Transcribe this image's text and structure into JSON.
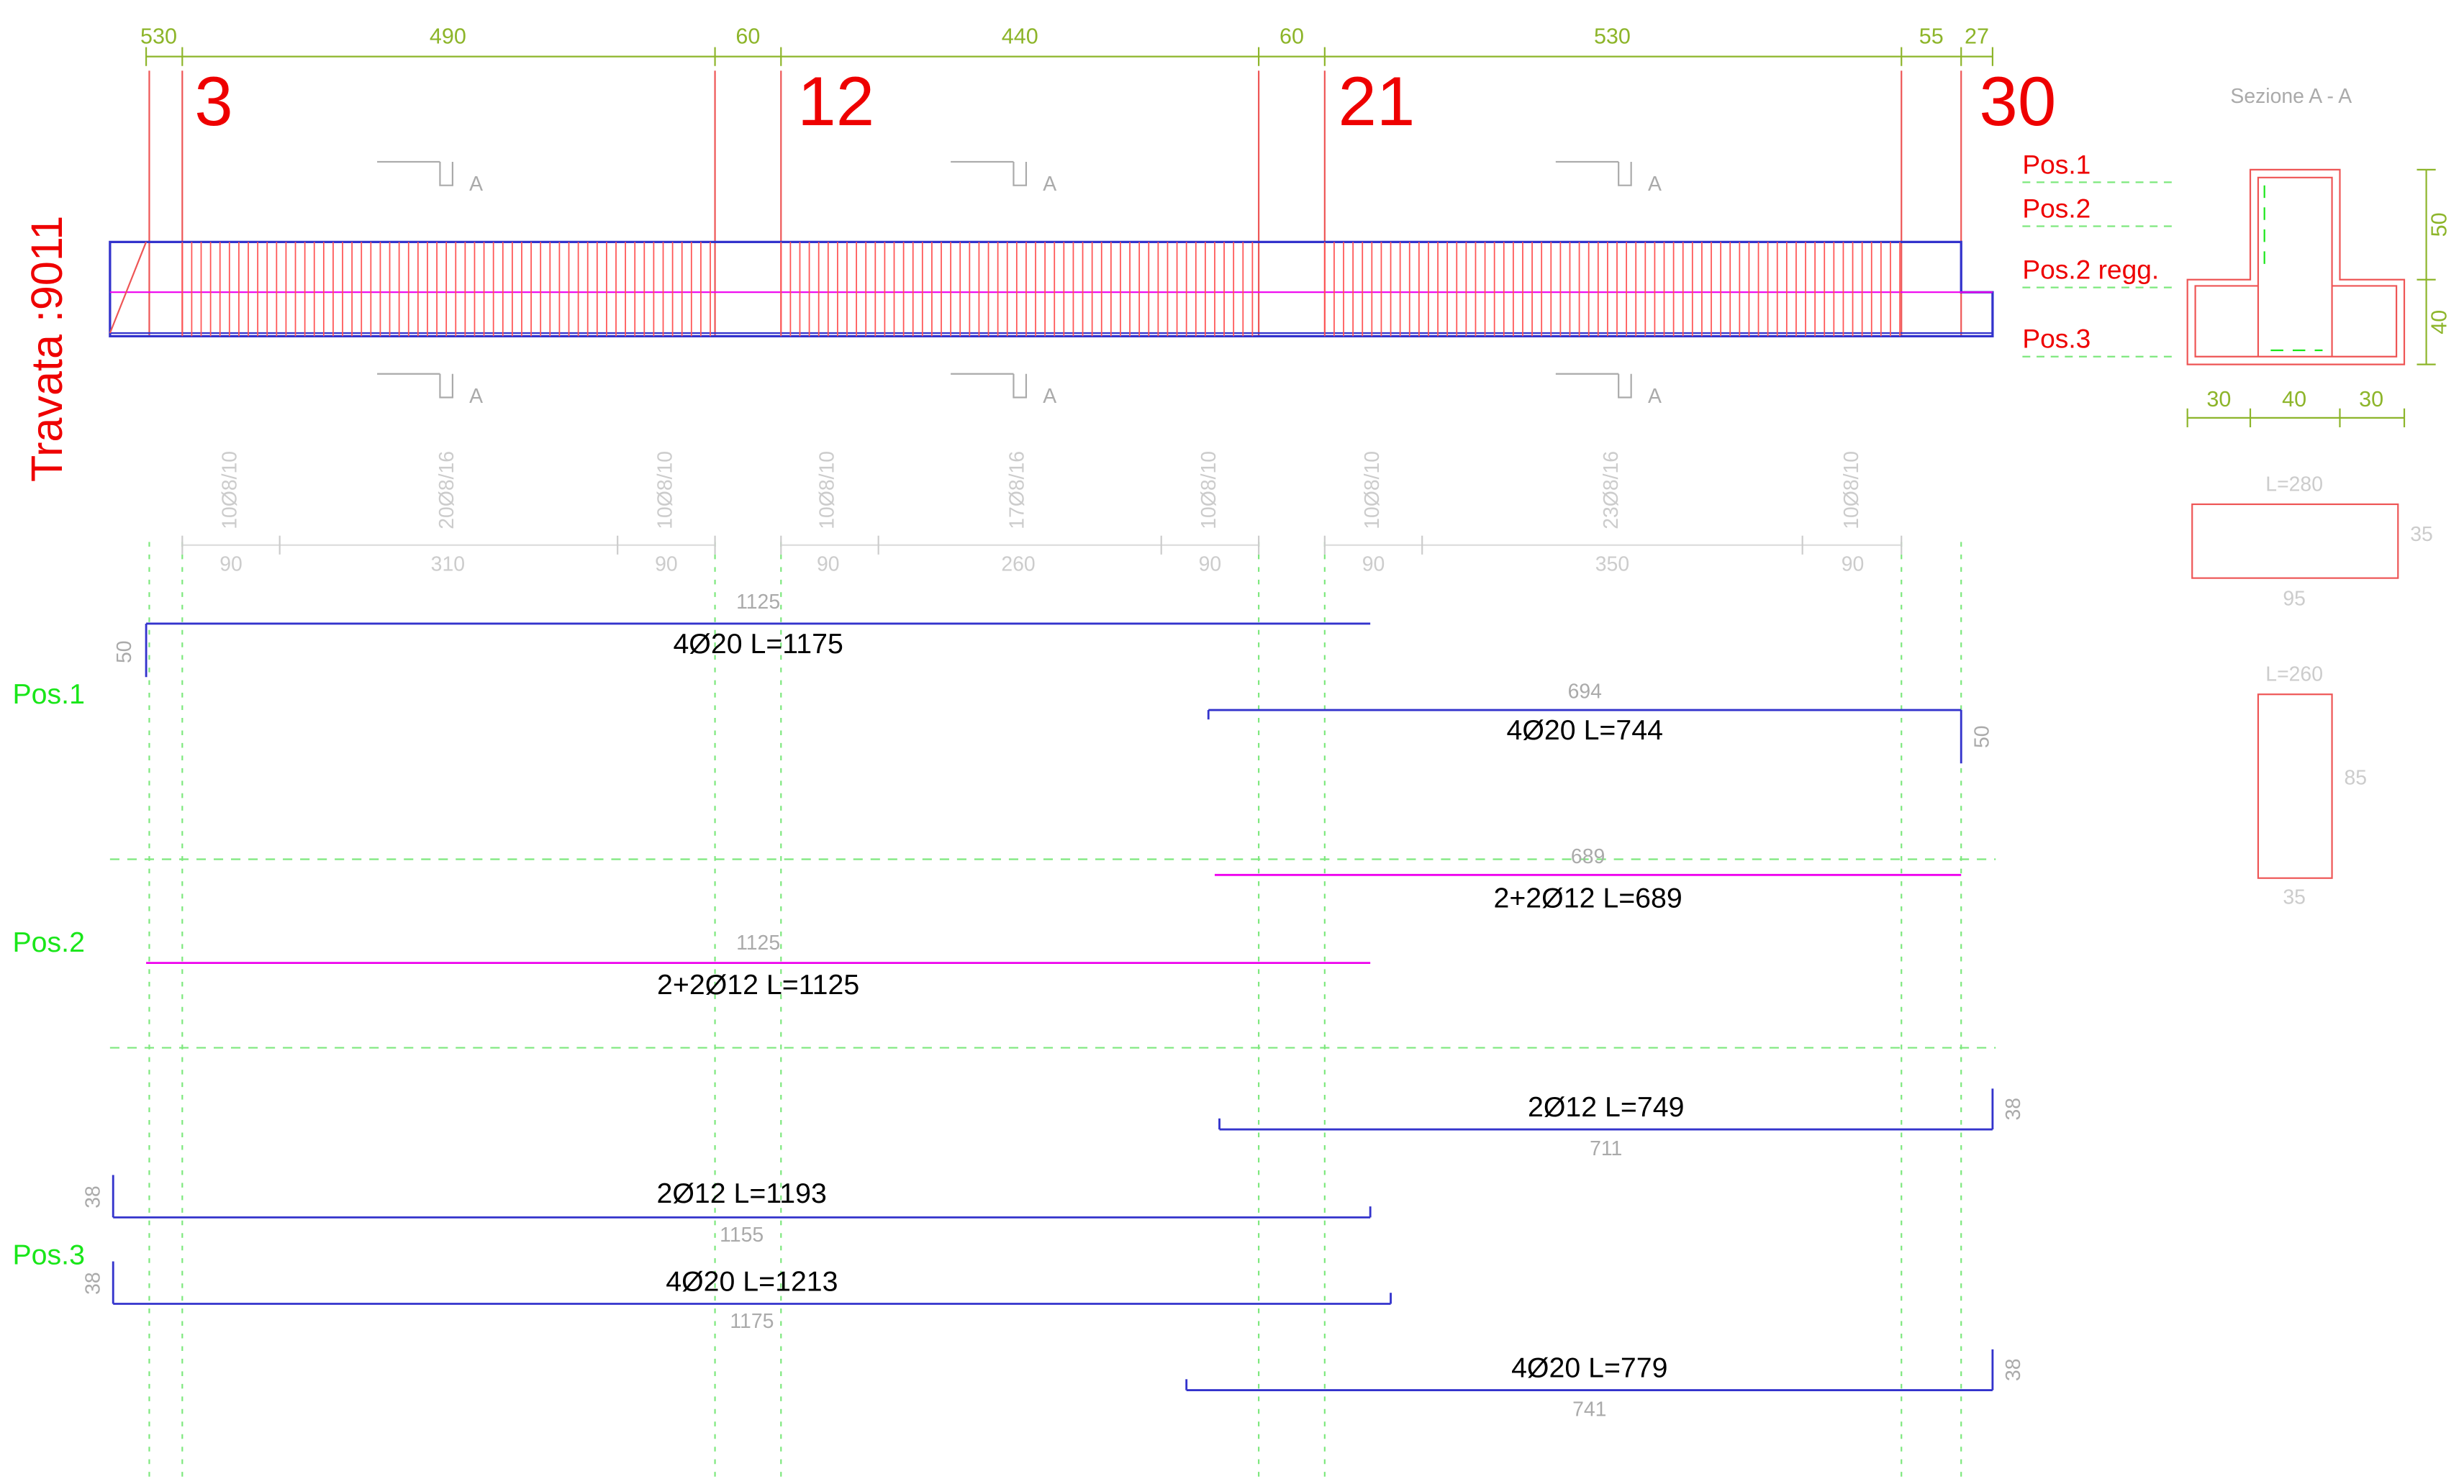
{
  "top_dimensions": [
    "530",
    "490",
    "60",
    "440",
    "60",
    "530",
    "55",
    "27"
  ],
  "columns": [
    "3",
    "12",
    "21",
    "30"
  ],
  "section_markers": [
    "A",
    "A",
    "A",
    "A",
    "A",
    "A"
  ],
  "beam_label": "Travata :9011",
  "section": {
    "title": "Sezione  A - A",
    "positions": [
      "Pos.1",
      "Pos.2",
      "Pos.2 regg.",
      "Pos.3"
    ],
    "vertical_dims": [
      "50",
      "40"
    ],
    "horizontal_dims": [
      "30",
      "40",
      "30"
    ]
  },
  "stirrup_shapes": [
    {
      "length": "L=280",
      "side": "35",
      "bottom": "95"
    },
    {
      "length": "L=260",
      "side": "85",
      "bottom": "35"
    }
  ],
  "stirrup_labels": [
    "10Ø8/10",
    "20Ø8/16",
    "10Ø8/10",
    "10Ø8/10",
    "17Ø8/16",
    "10Ø8/10",
    "10Ø8/10",
    "23Ø8/16",
    "10Ø8/10"
  ],
  "stirrup_spacings": [
    "90",
    "310",
    "90",
    "90",
    "260",
    "90",
    "90",
    "350",
    "90"
  ],
  "groups": [
    "Pos.1",
    "Pos.2",
    "Pos.3"
  ],
  "bars": [
    {
      "label": "4Ø20 L=1175",
      "length": "1125",
      "hook": "50"
    },
    {
      "label": "4Ø20 L=744",
      "length": "694",
      "hook": "50"
    },
    {
      "label": "2+2Ø12 L=689",
      "length": "689"
    },
    {
      "label": "2+2Ø12 L=1125",
      "length": "1125"
    },
    {
      "label": "2Ø12 L=749",
      "length": "711",
      "hook": "38"
    },
    {
      "label": "2Ø12 L=1193",
      "length": "1155",
      "hook": "38"
    },
    {
      "label": "4Ø20 L=1213",
      "length": "1175",
      "hook": "38"
    },
    {
      "label": "4Ø20 L=779",
      "length": "741",
      "hook": "38"
    }
  ]
}
